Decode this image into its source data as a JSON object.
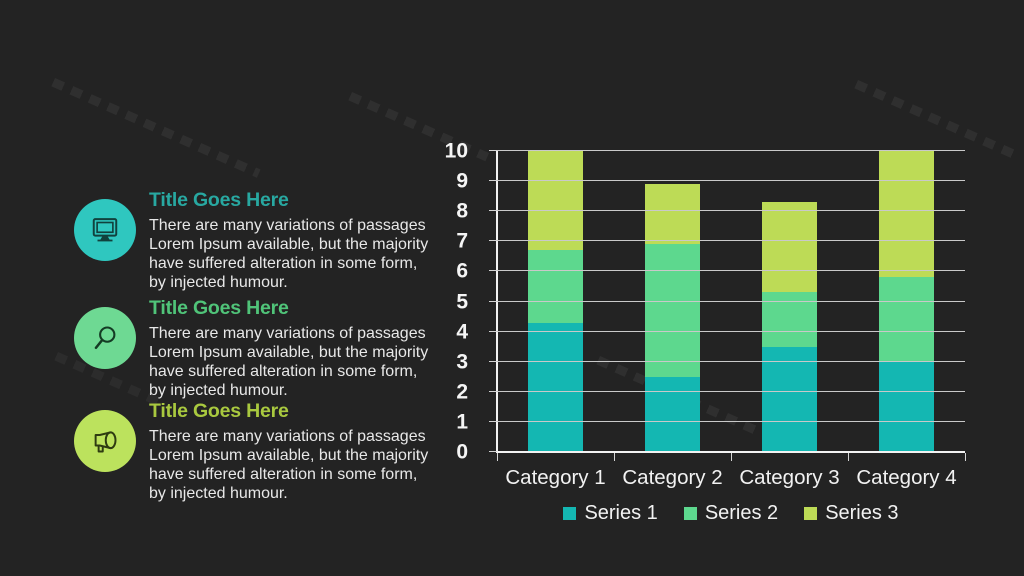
{
  "slide": {
    "background_color": "#232323",
    "items": [
      {
        "icon": "monitor-icon",
        "circle_color": "#2fc7bf",
        "title_color": "#28a8a1",
        "title": "Title Goes Here",
        "body": "There are many variations of passages\nLorem Ipsum available, but the majority\nhave suffered alteration in some form,\nby injected humour."
      },
      {
        "icon": "magnifier-icon",
        "circle_color": "#6ed993",
        "title_color": "#50c479",
        "title": "Title Goes Here",
        "body": "There are many variations of passages\nLorem Ipsum available, but the majority\nhave suffered alteration in some form,\nby injected humour."
      },
      {
        "icon": "megaphone-icon",
        "circle_color": "#bce25d",
        "title_color": "#a9c93f",
        "title": "Title Goes Here",
        "body": "There are many variations of passages\nLorem Ipsum available, but the majority\nhave suffered alteration in some form,\nby injected humour."
      }
    ]
  },
  "chart_data": {
    "type": "bar",
    "stacked": true,
    "title": "",
    "xlabel": "",
    "ylabel": "",
    "categories": [
      "Category 1",
      "Category 2",
      "Category 3",
      "Category 4"
    ],
    "series": [
      {
        "name": "Series 1",
        "color": "#14b7b2",
        "values": [
          4.3,
          2.5,
          3.5,
          3.0
        ]
      },
      {
        "name": "Series 2",
        "color": "#5dd88e",
        "values": [
          2.4,
          4.4,
          1.8,
          2.8
        ]
      },
      {
        "name": "Series 3",
        "color": "#bddb56",
        "values": [
          3.3,
          2.0,
          3.0,
          4.2
        ]
      }
    ],
    "stack_totals": [
      10,
      8.9,
      8.3,
      10
    ],
    "ylim": [
      0,
      10
    ],
    "ytick_step": 1,
    "grid": true,
    "grid_color": "#c9c9c9",
    "axis_color": "#f2f2f2",
    "legend_position": "bottom"
  }
}
